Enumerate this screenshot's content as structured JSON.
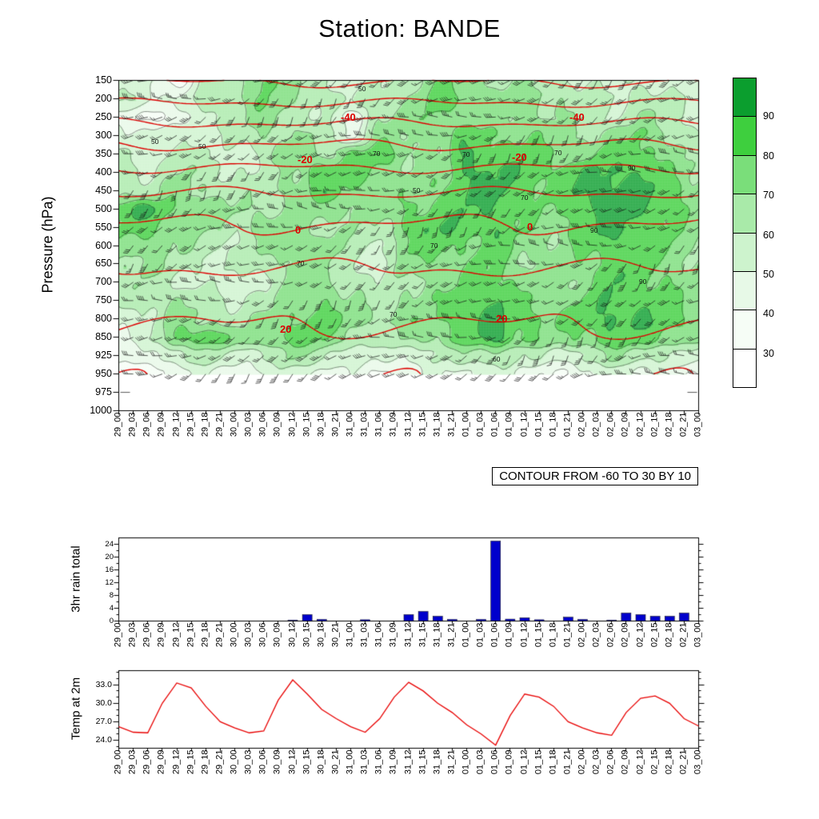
{
  "title": "Station: BANDE",
  "main_panel": {
    "ylabel": "Pressure (hPa)",
    "contour_note": "CONTOUR FROM -60 TO 30 BY 10"
  },
  "colorbar": {
    "labels": [
      "90",
      "80",
      "70",
      "60",
      "50",
      "40",
      "30"
    ],
    "colors_top_to_bottom": [
      "#0b9e2e",
      "#3ecf3e",
      "#7ade7a",
      "#a9eaa9",
      "#cdf3cd",
      "#e7f9e7",
      "#f6fdf6",
      "#ffffff"
    ]
  },
  "chart_data": [
    {
      "type": "heatmap",
      "panel": "upper-air-time-height-section",
      "title": "Station: BANDE",
      "ylabel": "Pressure (hPa)",
      "y_tick_labels": [
        "150",
        "200",
        "250",
        "300",
        "350",
        "400",
        "450",
        "500",
        "550",
        "600",
        "650",
        "700",
        "750",
        "800",
        "850",
        "925",
        "950",
        "975",
        "1000"
      ],
      "x": [
        "29_00",
        "29_03",
        "29_06",
        "29_09",
        "29_12",
        "29_15",
        "29_18",
        "29_21",
        "30_00",
        "30_03",
        "30_06",
        "30_09",
        "30_12",
        "30_15",
        "30_18",
        "30_21",
        "31_00",
        "31_03",
        "31_06",
        "31_09",
        "31_12",
        "31_15",
        "31_18",
        "31_21",
        "01_00",
        "01_03",
        "01_06",
        "01_09",
        "01_12",
        "01_15",
        "01_18",
        "01_21",
        "02_00",
        "02_03",
        "02_06",
        "02_09",
        "02_12",
        "02_15",
        "02_18",
        "02_21",
        "03_00"
      ],
      "shading": {
        "legend_values": [
          30,
          40,
          50,
          60,
          70,
          80,
          90
        ],
        "colors_high_to_low": [
          "#0b9e2e",
          "#3ecf3e",
          "#7ade7a",
          "#a9eaa9",
          "#cdf3cd",
          "#e7f9e7",
          "#f6fdf6",
          "#ffffff"
        ],
        "grid_times": [
          "29_00",
          "29_06",
          "29_12",
          "29_18",
          "30_00",
          "30_06",
          "30_12",
          "30_18",
          "31_00",
          "31_06",
          "31_12",
          "31_18",
          "01_00",
          "01_06",
          "01_12",
          "01_18",
          "02_00",
          "02_06",
          "02_12",
          "02_18",
          "03_00"
        ],
        "grid_levels": [
          150,
          200,
          250,
          300,
          350,
          400,
          450,
          500,
          550,
          600,
          650,
          700,
          750,
          800,
          850,
          925,
          950
        ],
        "grid_values_pct": [
          [
            55,
            50,
            38,
            60,
            65,
            85,
            70,
            60,
            55,
            60,
            65,
            80,
            75,
            70,
            70,
            65,
            60,
            55,
            60,
            55,
            50
          ],
          [
            60,
            55,
            50,
            65,
            70,
            80,
            70,
            65,
            60,
            65,
            70,
            85,
            80,
            75,
            75,
            70,
            65,
            60,
            65,
            60,
            55
          ],
          [
            50,
            38,
            42,
            60,
            65,
            75,
            65,
            60,
            45,
            70,
            75,
            80,
            75,
            70,
            75,
            70,
            65,
            60,
            70,
            65,
            55
          ],
          [
            55,
            50,
            60,
            55,
            60,
            70,
            70,
            65,
            50,
            75,
            70,
            75,
            85,
            80,
            80,
            75,
            70,
            75,
            80,
            70,
            60
          ],
          [
            60,
            55,
            65,
            60,
            55,
            65,
            78,
            70,
            80,
            85,
            75,
            70,
            90,
            85,
            85,
            80,
            75,
            85,
            85,
            75,
            65
          ],
          [
            65,
            60,
            70,
            65,
            60,
            60,
            72,
            88,
            85,
            80,
            70,
            75,
            92,
            90,
            88,
            82,
            88,
            92,
            90,
            80,
            70
          ],
          [
            70,
            65,
            75,
            70,
            65,
            65,
            75,
            85,
            80,
            75,
            75,
            80,
            90,
            92,
            85,
            80,
            92,
            95,
            92,
            85,
            75
          ],
          [
            85,
            92,
            80,
            75,
            70,
            70,
            70,
            75,
            75,
            70,
            80,
            85,
            88,
            90,
            80,
            78,
            90,
            95,
            90,
            85,
            75
          ],
          [
            80,
            85,
            75,
            70,
            65,
            75,
            75,
            70,
            70,
            65,
            85,
            90,
            85,
            88,
            78,
            75,
            85,
            92,
            88,
            82,
            72
          ],
          [
            75,
            78,
            70,
            65,
            60,
            70,
            80,
            75,
            65,
            60,
            80,
            85,
            80,
            85,
            75,
            72,
            80,
            88,
            85,
            80,
            70
          ],
          [
            70,
            72,
            65,
            60,
            58,
            65,
            75,
            70,
            60,
            55,
            75,
            80,
            78,
            82,
            72,
            70,
            78,
            85,
            82,
            78,
            68
          ],
          [
            65,
            68,
            60,
            58,
            55,
            60,
            70,
            75,
            65,
            60,
            70,
            75,
            80,
            85,
            75,
            72,
            75,
            88,
            85,
            80,
            70
          ],
          [
            60,
            65,
            70,
            65,
            60,
            65,
            75,
            80,
            70,
            65,
            72,
            78,
            85,
            90,
            80,
            75,
            80,
            90,
            88,
            82,
            72
          ],
          [
            55,
            60,
            75,
            70,
            65,
            70,
            80,
            85,
            75,
            70,
            75,
            80,
            88,
            92,
            85,
            80,
            85,
            92,
            90,
            85,
            75
          ],
          [
            50,
            55,
            80,
            88,
            75,
            78,
            85,
            80,
            70,
            65,
            70,
            75,
            85,
            92,
            82,
            75,
            80,
            88,
            85,
            80,
            70
          ],
          [
            40,
            45,
            60,
            65,
            55,
            60,
            70,
            65,
            55,
            50,
            55,
            60,
            65,
            70,
            60,
            55,
            60,
            70,
            65,
            60,
            50
          ],
          [
            30,
            35,
            45,
            50,
            45,
            50,
            55,
            50,
            45,
            40,
            45,
            50,
            50,
            55,
            45,
            40,
            45,
            55,
            50,
            45,
            40
          ]
        ]
      },
      "black_contours": {
        "levels": [
          30,
          40,
          50,
          60,
          70,
          80,
          90
        ],
        "labels": [
          {
            "text": "50",
            "t": 0.064,
            "p": 318
          },
          {
            "text": "50",
            "t": 0.145,
            "p": 330
          },
          {
            "text": "50",
            "t": 0.42,
            "p": 175
          },
          {
            "text": "70",
            "t": 0.445,
            "p": 350
          },
          {
            "text": "50",
            "t": 0.515,
            "p": 450
          },
          {
            "text": "70",
            "t": 0.6,
            "p": 352
          },
          {
            "text": "70",
            "t": 0.545,
            "p": 600
          },
          {
            "text": "70",
            "t": 0.315,
            "p": 648
          },
          {
            "text": "70",
            "t": 0.475,
            "p": 788
          },
          {
            "text": "90",
            "t": 0.885,
            "p": 390
          },
          {
            "text": "90",
            "t": 0.82,
            "p": 560
          },
          {
            "text": "70",
            "t": 0.758,
            "p": 348
          },
          {
            "text": "60",
            "t": 0.652,
            "p": 930
          },
          {
            "text": "70",
            "t": 0.7,
            "p": 470
          },
          {
            "text": "90",
            "t": 0.905,
            "p": 700
          }
        ]
      },
      "red_temp_contours": {
        "note": "CONTOUR FROM -60 TO 30 BY 10",
        "levels": [
          -60,
          -50,
          -40,
          -30,
          -20,
          -10,
          0,
          10,
          20,
          30
        ],
        "color": "#dd0000",
        "base_profile_degC_by_level": [
          -61,
          -52,
          -43,
          -34,
          -26,
          -18,
          -11,
          -4,
          1,
          5,
          9,
          13,
          16,
          19,
          22,
          26,
          28
        ],
        "labels": [
          {
            "text": "-40",
            "t": 0.4,
            "p": 252
          },
          {
            "text": "-40",
            "t": 0.795,
            "p": 252
          },
          {
            "text": "-20",
            "t": 0.325,
            "p": 368
          },
          {
            "text": "-20",
            "t": 0.695,
            "p": 362
          },
          {
            "text": "0",
            "t": 0.322,
            "p": 560
          },
          {
            "text": "0",
            "t": 0.722,
            "p": 552
          },
          {
            "text": "20",
            "t": 0.295,
            "p": 830
          },
          {
            "text": "20",
            "t": 0.668,
            "p": 802
          }
        ]
      },
      "wind_barbs_present": true
    },
    {
      "type": "bar",
      "ylabel": "3hr rain total",
      "y_tick_labels": [
        "0",
        "4",
        "8",
        "12",
        "16",
        "20",
        "24"
      ],
      "ylim": [
        0,
        26
      ],
      "bar_color": "#0000cc",
      "x_labels_ref": "chart_data[0].x",
      "values": [
        0,
        0,
        0,
        0,
        0,
        0,
        0,
        0,
        0,
        0,
        0,
        0,
        0.3,
        2,
        0.5,
        0,
        0,
        0.4,
        0,
        0,
        2,
        3,
        1.5,
        0.5,
        0,
        0.5,
        25,
        0.6,
        1,
        0.4,
        0,
        1.2,
        0.5,
        0,
        0.3,
        2.5,
        2,
        1.5,
        1.5,
        2.5,
        0
      ]
    },
    {
      "type": "line",
      "ylabel": "Temp at 2m",
      "y_tick_labels": [
        "24.0",
        "27.0",
        "30.0",
        "33.0"
      ],
      "ylim": [
        22.7,
        35.3
      ],
      "line_color": "#e80000",
      "x_labels_ref": "chart_data[0].x",
      "values": [
        26.2,
        25.3,
        25.2,
        30.0,
        33.3,
        32.5,
        29.5,
        27.0,
        26.0,
        25.2,
        25.5,
        30.5,
        33.8,
        31.5,
        29.0,
        27.5,
        26.2,
        25.3,
        27.5,
        31.0,
        33.4,
        32.0,
        30.0,
        28.5,
        26.5,
        25.0,
        23.2,
        28.0,
        31.5,
        31.0,
        29.5,
        27.0,
        26.0,
        25.2,
        24.8,
        28.5,
        30.8,
        31.2,
        30.0,
        27.5,
        26.3
      ]
    }
  ]
}
